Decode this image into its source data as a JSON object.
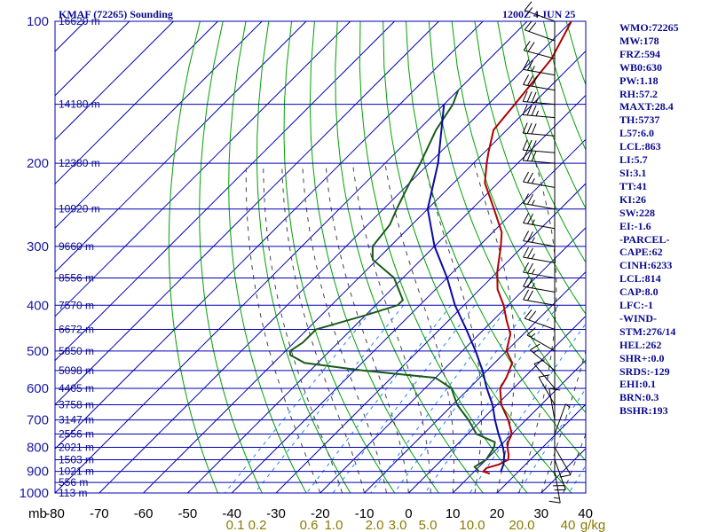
{
  "header": {
    "title": "KMAF (72265) Sounding",
    "time": "1200Z  4 JUN 25"
  },
  "chart_data": {
    "type": "skew-t log-p sounding",
    "y_axis": {
      "unit": "mb",
      "scale": "log",
      "range": [
        1000,
        100
      ],
      "ticks": [
        "100",
        "200",
        "300",
        "400",
        "500",
        "600",
        "700",
        "800",
        "900",
        "1000"
      ]
    },
    "x_axis": {
      "range": [
        -80,
        40
      ],
      "ticks": [
        "-80",
        "-70",
        "-60",
        "-50",
        "-40",
        "-30",
        "-20",
        "-10",
        "0",
        "10",
        "20",
        "30",
        "40"
      ]
    },
    "mixing_ratio_labels": [
      "0.1",
      "0.2",
      "0.6",
      "1.0",
      "2.0",
      "3.0",
      "5.0",
      "10.0",
      "20.0",
      "40",
      "g/kg"
    ],
    "height_labels": [
      {
        "p": 100,
        "label": "16620 m"
      },
      {
        "p": 150,
        "label": "14180 m"
      },
      {
        "p": 200,
        "label": "12380 m"
      },
      {
        "p": 250,
        "label": "10920 m"
      },
      {
        "p": 300,
        "label": "9660 m"
      },
      {
        "p": 350,
        "label": "8556 m"
      },
      {
        "p": 400,
        "label": "7570 m"
      },
      {
        "p": 450,
        "label": "6672 m"
      },
      {
        "p": 500,
        "label": "5850 m"
      },
      {
        "p": 550,
        "label": "5098 m"
      },
      {
        "p": 600,
        "label": "4405 m"
      },
      {
        "p": 650,
        "label": "3758 m"
      },
      {
        "p": 700,
        "label": "3147 m"
      },
      {
        "p": 750,
        "label": "2556 m"
      },
      {
        "p": 800,
        "label": "2021 m"
      },
      {
        "p": 850,
        "label": "1503 m"
      },
      {
        "p": 900,
        "label": "1021 m"
      },
      {
        "p": 950,
        "label": "556 m"
      },
      {
        "p": 1000,
        "label": "113 m"
      }
    ],
    "series": [
      {
        "name": "Temperature",
        "color": "#b00000",
        "points": [
          [
            100,
            -70
          ],
          [
            120,
            -66
          ],
          [
            150,
            -64
          ],
          [
            170,
            -63
          ],
          [
            190,
            -59
          ],
          [
            200,
            -57
          ],
          [
            220,
            -53
          ],
          [
            250,
            -45
          ],
          [
            280,
            -38
          ],
          [
            300,
            -35
          ],
          [
            340,
            -30
          ],
          [
            370,
            -26
          ],
          [
            400,
            -21
          ],
          [
            430,
            -17
          ],
          [
            460,
            -13
          ],
          [
            500,
            -10
          ],
          [
            530,
            -6
          ],
          [
            570,
            -4
          ],
          [
            600,
            -3
          ],
          [
            650,
            1
          ],
          [
            700,
            6
          ],
          [
            750,
            10
          ],
          [
            780,
            11
          ],
          [
            800,
            12
          ],
          [
            830,
            14
          ],
          [
            850,
            15
          ],
          [
            870,
            14
          ],
          [
            885,
            12
          ],
          [
            900,
            12
          ],
          [
            910,
            14
          ]
        ]
      },
      {
        "name": "Dewpoint",
        "color": "#1a5a1a",
        "points": [
          [
            140,
            -80
          ],
          [
            150,
            -78
          ],
          [
            170,
            -76
          ],
          [
            200,
            -72
          ],
          [
            220,
            -70
          ],
          [
            250,
            -67
          ],
          [
            270,
            -65
          ],
          [
            300,
            -64
          ],
          [
            320,
            -61
          ],
          [
            350,
            -52
          ],
          [
            390,
            -45
          ],
          [
            400,
            -45
          ],
          [
            420,
            -50
          ],
          [
            450,
            -58
          ],
          [
            480,
            -58
          ],
          [
            500,
            -59
          ],
          [
            510,
            -58
          ],
          [
            530,
            -53
          ],
          [
            550,
            -38
          ],
          [
            570,
            -20
          ],
          [
            600,
            -14
          ],
          [
            650,
            -9
          ],
          [
            700,
            -3
          ],
          [
            750,
            2
          ],
          [
            780,
            8
          ],
          [
            800,
            9
          ],
          [
            850,
            10
          ],
          [
            880,
            9
          ],
          [
            900,
            11
          ]
        ]
      },
      {
        "name": "Parcel",
        "color": "#0a0aa0",
        "points": [
          [
            150,
            -80
          ],
          [
            200,
            -68
          ],
          [
            250,
            -60
          ],
          [
            300,
            -50
          ],
          [
            350,
            -40
          ],
          [
            400,
            -32
          ],
          [
            450,
            -24
          ],
          [
            500,
            -17
          ],
          [
            550,
            -11
          ],
          [
            600,
            -6
          ],
          [
            650,
            -1
          ],
          [
            700,
            3
          ],
          [
            750,
            7
          ],
          [
            800,
            11
          ],
          [
            830,
            13
          ],
          [
            850,
            14
          ],
          [
            870,
            15
          ],
          [
            900,
            16
          ]
        ]
      }
    ],
    "wind_barbs": [
      {
        "p": 100,
        "dir": 290,
        "kt": 15
      },
      {
        "p": 110,
        "dir": 290,
        "kt": 20
      },
      {
        "p": 120,
        "dir": 285,
        "kt": 20
      },
      {
        "p": 130,
        "dir": 280,
        "kt": 25
      },
      {
        "p": 140,
        "dir": 280,
        "kt": 30
      },
      {
        "p": 150,
        "dir": 275,
        "kt": 35
      },
      {
        "p": 160,
        "dir": 275,
        "kt": 35
      },
      {
        "p": 175,
        "dir": 275,
        "kt": 30
      },
      {
        "p": 190,
        "dir": 275,
        "kt": 30
      },
      {
        "p": 200,
        "dir": 275,
        "kt": 30
      },
      {
        "p": 225,
        "dir": 280,
        "kt": 25
      },
      {
        "p": 250,
        "dir": 280,
        "kt": 25
      },
      {
        "p": 275,
        "dir": 280,
        "kt": 25
      },
      {
        "p": 300,
        "dir": 280,
        "kt": 25
      },
      {
        "p": 325,
        "dir": 280,
        "kt": 25
      },
      {
        "p": 350,
        "dir": 280,
        "kt": 25
      },
      {
        "p": 375,
        "dir": 280,
        "kt": 25
      },
      {
        "p": 400,
        "dir": 280,
        "kt": 20
      },
      {
        "p": 450,
        "dir": 290,
        "kt": 20
      },
      {
        "p": 500,
        "dir": 300,
        "kt": 15
      },
      {
        "p": 550,
        "dir": 310,
        "kt": 15
      },
      {
        "p": 600,
        "dir": 320,
        "kt": 10
      },
      {
        "p": 650,
        "dir": 330,
        "kt": 10
      },
      {
        "p": 700,
        "dir": 350,
        "kt": 10
      },
      {
        "p": 750,
        "dir": 20,
        "kt": 5
      },
      {
        "p": 800,
        "dir": 150,
        "kt": 10
      },
      {
        "p": 850,
        "dir": 160,
        "kt": 20
      },
      {
        "p": 900,
        "dir": 170,
        "kt": 15
      }
    ]
  },
  "indices": [
    "WMO:72265",
    "MW:178",
    "FRZ:594",
    "WB0:630",
    "PW:1.18",
    "RH:57.2",
    "MAXT:28.4",
    "TH:5737",
    "L57:6.0",
    "LCL:863",
    "LI:5.7",
    "SI:3.1",
    "TT:41",
    "KI:26",
    "SW:228",
    "EI:-1.6",
    "-PARCEL-",
    "CAPE:62",
    "CINH:6233",
    "LCL:814",
    "CAP:8.0",
    "LFC:-1",
    "-WIND-",
    "STM:276/14",
    "HEL:262",
    "SHR+:0.0",
    "SRDS:-129",
    "EHI:0.1",
    "BRN:0.3",
    "BSHR:193"
  ],
  "colors": {
    "isobar": "#0000b4",
    "isotherm": "#0000b4",
    "dry_adiabat": "#00a000",
    "moist_adiabat": "#444444",
    "mixing_ratio": "#2080ff",
    "mixing_ratio_text": "#8a7a00",
    "index_text": "#0a0a8c"
  }
}
